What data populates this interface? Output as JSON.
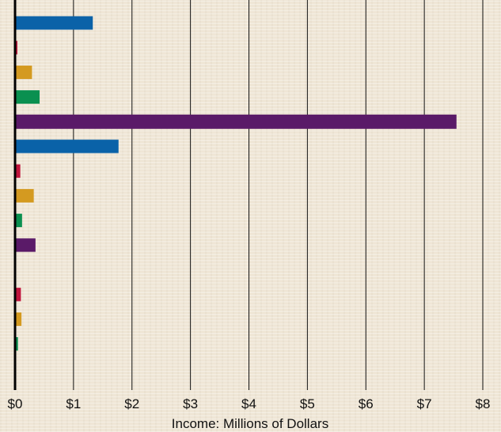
{
  "chart_data": {
    "type": "bar",
    "orientation": "horizontal",
    "title": "",
    "xlabel": "Income: Millions of Dollars",
    "ylabel": "",
    "xlim": [
      0,
      8
    ],
    "tick_labels": [
      "$0",
      "$1",
      "$2",
      "$3",
      "$4",
      "$5",
      "$6",
      "$7",
      "$8"
    ],
    "grid": "vertical",
    "colors": {
      "blue": "#0a62a8",
      "red": "#c0143c",
      "orange": "#d49a20",
      "green": "#0a9050",
      "purple": "#5a1a68"
    },
    "bars": [
      {
        "value": 1.33,
        "color": "blue"
      },
      {
        "value": 0.04,
        "color": "red"
      },
      {
        "value": 0.29,
        "color": "orange"
      },
      {
        "value": 0.42,
        "color": "green"
      },
      {
        "value": 7.55,
        "color": "purple"
      },
      {
        "value": 1.77,
        "color": "blue"
      },
      {
        "value": 0.09,
        "color": "red"
      },
      {
        "value": 0.32,
        "color": "orange"
      },
      {
        "value": 0.12,
        "color": "green"
      },
      {
        "value": 0.35,
        "color": "purple"
      },
      {
        "value": 0.0,
        "color": "blue"
      },
      {
        "value": 0.1,
        "color": "red"
      },
      {
        "value": 0.11,
        "color": "orange"
      },
      {
        "value": 0.05,
        "color": "green"
      }
    ]
  }
}
